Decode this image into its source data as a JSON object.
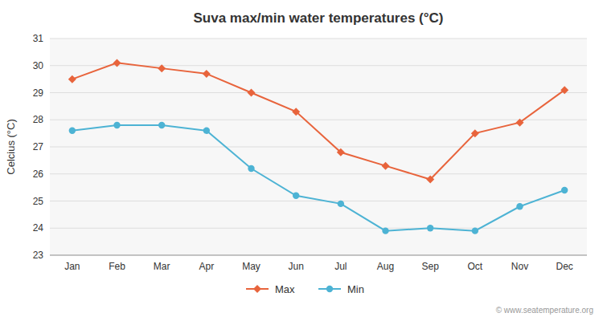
{
  "chart_data": {
    "type": "line",
    "title": "Suva max/min water temperatures (°C)",
    "y_label": "Celcius (°C)",
    "categories": [
      "Jan",
      "Feb",
      "Mar",
      "Apr",
      "May",
      "Jun",
      "Jul",
      "Aug",
      "Sep",
      "Oct",
      "Nov",
      "Dec"
    ],
    "series": [
      {
        "name": "Max",
        "color": "#e8643c",
        "marker": "diamond",
        "values": [
          29.5,
          30.1,
          29.9,
          29.7,
          29.0,
          28.3,
          26.8,
          26.3,
          25.8,
          27.5,
          27.9,
          29.1
        ]
      },
      {
        "name": "Min",
        "color": "#4db3d4",
        "marker": "circle",
        "values": [
          27.6,
          27.8,
          27.8,
          27.6,
          26.2,
          25.2,
          24.9,
          23.9,
          24.0,
          23.9,
          24.8,
          25.4
        ]
      }
    ],
    "ylim": [
      23,
      31
    ],
    "yticks": [
      23,
      24,
      25,
      26,
      27,
      28,
      29,
      30,
      31
    ],
    "grid": true,
    "legend": "bottom",
    "annotations": [
      "© www.seatemperature.org"
    ]
  }
}
